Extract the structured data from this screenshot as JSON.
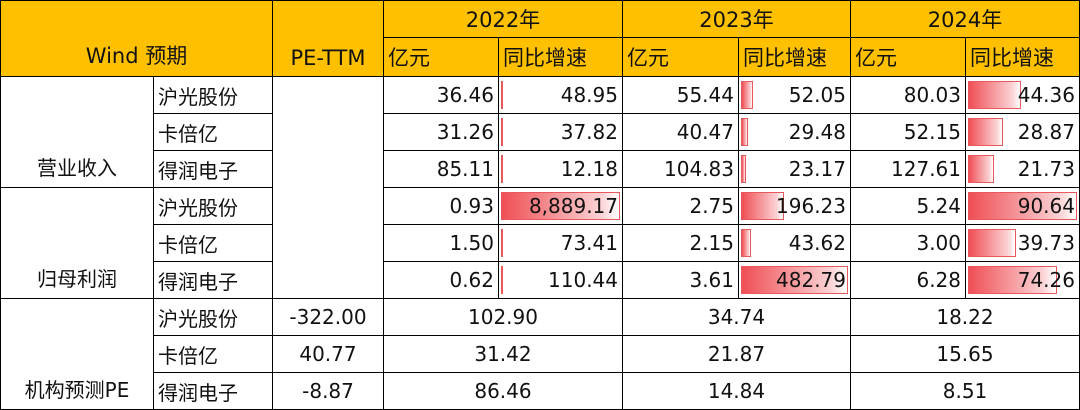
{
  "header": {
    "wind": "Wind 预期",
    "pe": "PE-TTM",
    "years": [
      "2022年",
      "2023年",
      "2024年"
    ],
    "sub": [
      "亿元",
      "同比增速"
    ]
  },
  "groups": [
    {
      "label": "营业收入",
      "rows": [
        {
          "company": "沪光股份",
          "cells": [
            "36.46",
            "48.95",
            "55.44",
            "52.05",
            "80.03",
            "44.36"
          ]
        },
        {
          "company": "卡倍亿",
          "cells": [
            "31.26",
            "37.82",
            "40.47",
            "29.48",
            "52.15",
            "28.87"
          ]
        },
        {
          "company": "得润电子",
          "cells": [
            "85.11",
            "12.18",
            "104.83",
            "23.17",
            "127.61",
            "21.73"
          ]
        }
      ]
    },
    {
      "label": "归母利润",
      "rows": [
        {
          "company": "沪光股份",
          "cells": [
            "0.93",
            "8,889.17",
            "2.75",
            "196.23",
            "5.24",
            "90.64"
          ]
        },
        {
          "company": "卡倍亿",
          "cells": [
            "1.50",
            "73.41",
            "2.15",
            "43.62",
            "3.00",
            "39.73"
          ]
        },
        {
          "company": "得润电子",
          "cells": [
            "0.62",
            "110.44",
            "3.61",
            "482.79",
            "6.28",
            "74.26"
          ]
        }
      ]
    },
    {
      "label": "机构预测PE",
      "rows": [
        {
          "company": "沪光股份",
          "pe": "-322.00",
          "cells": [
            "102.90",
            "34.74",
            "18.22"
          ]
        },
        {
          "company": "卡倍亿",
          "pe": "40.77",
          "cells": [
            "31.42",
            "21.87",
            "15.65"
          ]
        },
        {
          "company": "得润电子",
          "pe": "-8.87",
          "cells": [
            "86.46",
            "14.84",
            "8.51"
          ]
        }
      ]
    }
  ]
}
